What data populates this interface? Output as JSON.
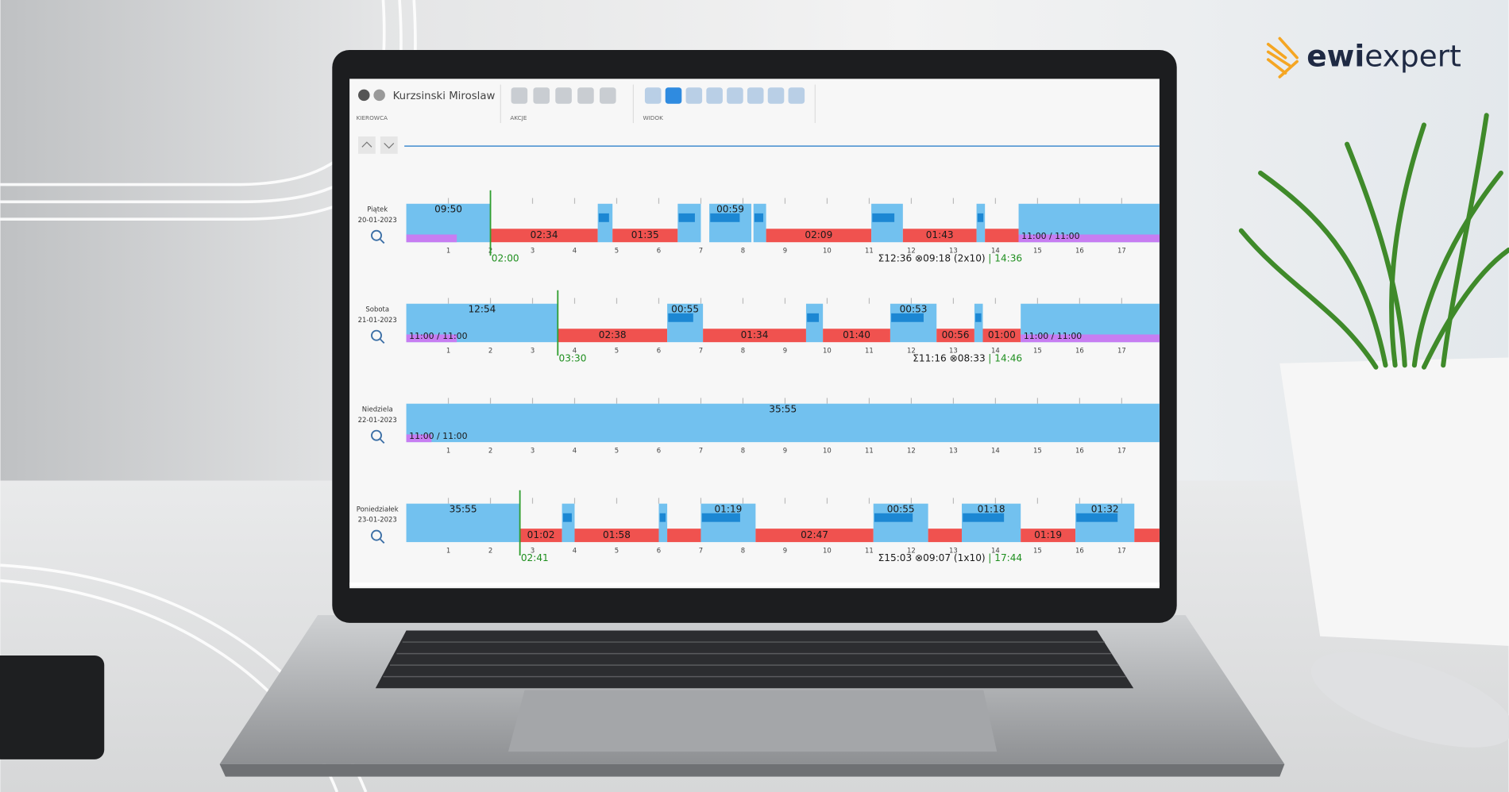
{
  "brand": {
    "part1": "ewi",
    "part2": "expert"
  },
  "app": {
    "driver_name": "Kurzsinski Miroslaw",
    "groups": [
      "KIEROWCA",
      "AKCJE",
      "WIDOK"
    ],
    "hours": [
      1,
      2,
      3,
      4,
      5,
      6,
      7,
      8,
      9,
      10,
      11,
      12,
      13,
      14,
      15,
      16,
      17
    ],
    "days": [
      {
        "name": "Piątek",
        "date": "20-01-2023",
        "start_label": "02:00",
        "summary": "Σ12:36 ⊗09:18 (2x10)",
        "summary_end": "| 14:36",
        "segments": [
          {
            "kind": "rest",
            "start": 0,
            "end": 2.0,
            "label": "09:50"
          },
          {
            "kind": "drive",
            "start": 2.0,
            "end": 4.55,
            "label": "02:34"
          },
          {
            "kind": "work",
            "start": 4.55,
            "end": 4.9
          },
          {
            "kind": "drive",
            "start": 4.9,
            "end": 6.45,
            "label": "01:35"
          },
          {
            "kind": "work",
            "start": 6.45,
            "end": 7.0
          },
          {
            "kind": "work",
            "start": 7.2,
            "end": 8.2,
            "label": "00:59"
          },
          {
            "kind": "work",
            "start": 8.25,
            "end": 8.55
          },
          {
            "kind": "drive",
            "start": 8.55,
            "end": 11.05,
            "label": "02:09"
          },
          {
            "kind": "work",
            "start": 11.05,
            "end": 11.8
          },
          {
            "kind": "drive",
            "start": 11.8,
            "end": 13.55,
            "label": "01:43"
          },
          {
            "kind": "work",
            "start": 13.55,
            "end": 13.75
          },
          {
            "kind": "drive",
            "start": 13.75,
            "end": 14.55
          },
          {
            "kind": "rest",
            "start": 14.55,
            "end": 17.9
          }
        ],
        "strips": [
          {
            "color": "#c77df2",
            "start": 0,
            "end": 1.2
          },
          {
            "color": "#c77df2",
            "start": 14.55,
            "end": 17.9,
            "label": "11:00 / 11:00"
          }
        ]
      },
      {
        "name": "Sobota",
        "date": "21-01-2023",
        "start_label": "03:30",
        "summary": "Σ11:16 ⊗08:33",
        "summary_end": "| 14:46",
        "segments": [
          {
            "kind": "rest",
            "start": 0,
            "end": 3.6,
            "label": "12:54"
          },
          {
            "kind": "drive",
            "start": 3.6,
            "end": 6.2,
            "label": "02:38"
          },
          {
            "kind": "work",
            "start": 6.2,
            "end": 7.05,
            "label": "00:55"
          },
          {
            "kind": "drive",
            "start": 7.05,
            "end": 9.5,
            "label": "01:34"
          },
          {
            "kind": "work",
            "start": 9.5,
            "end": 9.9
          },
          {
            "kind": "drive",
            "start": 9.9,
            "end": 11.5,
            "label": "01:40"
          },
          {
            "kind": "work",
            "start": 11.5,
            "end": 12.6,
            "label": "00:53"
          },
          {
            "kind": "drive",
            "start": 12.6,
            "end": 13.5,
            "label": "00:56"
          },
          {
            "kind": "work",
            "start": 13.5,
            "end": 13.7
          },
          {
            "kind": "drive",
            "start": 13.7,
            "end": 14.6,
            "label": "01:00"
          },
          {
            "kind": "rest",
            "start": 14.6,
            "end": 17.9
          }
        ],
        "strips": [
          {
            "color": "#c77df2",
            "start": 0,
            "end": 1.2,
            "label": "11:00 / 11:00"
          },
          {
            "color": "#c77df2",
            "start": 14.6,
            "end": 17.9,
            "label": "11:00 / 11:00"
          }
        ]
      },
      {
        "name": "Niedziela",
        "date": "22-01-2023",
        "segments": [
          {
            "kind": "rest",
            "start": 0,
            "end": 17.9,
            "label": "35:55"
          }
        ],
        "strips": [
          {
            "color": "#c77df2",
            "start": 0,
            "end": 0.6,
            "label": "11:00 / 11:00"
          }
        ]
      },
      {
        "name": "Poniedziałek",
        "date": "23-01-2023",
        "start_label": "02:41",
        "summary": "Σ15:03 ⊗09:07 (1x10)",
        "summary_end": "| 17:44",
        "segments": [
          {
            "kind": "rest",
            "start": 0,
            "end": 2.7,
            "label": "35:55"
          },
          {
            "kind": "drive",
            "start": 2.7,
            "end": 3.7,
            "label": "01:02"
          },
          {
            "kind": "work",
            "start": 3.7,
            "end": 4.0
          },
          {
            "kind": "drive",
            "start": 4.0,
            "end": 6.0,
            "label": "01:58"
          },
          {
            "kind": "work",
            "start": 6.0,
            "end": 6.2
          },
          {
            "kind": "drive",
            "start": 6.2,
            "end": 7.0
          },
          {
            "kind": "work",
            "start": 7.0,
            "end": 8.3,
            "label": "01:19"
          },
          {
            "kind": "drive",
            "start": 8.3,
            "end": 11.1,
            "label": "02:47"
          },
          {
            "kind": "work",
            "start": 11.1,
            "end": 12.4,
            "label": "00:55"
          },
          {
            "kind": "drive",
            "start": 12.4,
            "end": 13.2
          },
          {
            "kind": "work",
            "start": 13.2,
            "end": 14.6,
            "label": "01:18"
          },
          {
            "kind": "drive",
            "start": 14.6,
            "end": 15.9,
            "label": "01:19"
          },
          {
            "kind": "work",
            "start": 15.9,
            "end": 17.3,
            "label": "01:32"
          },
          {
            "kind": "drive",
            "start": 17.3,
            "end": 17.9
          }
        ],
        "strips": []
      }
    ]
  }
}
